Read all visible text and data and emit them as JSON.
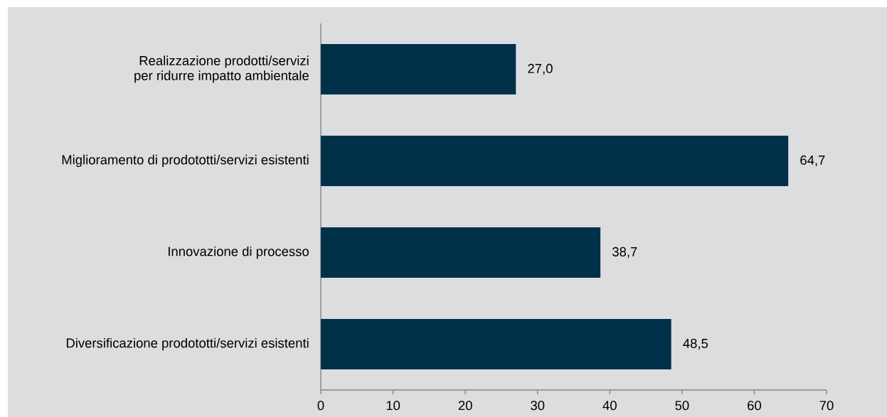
{
  "chart_data": {
    "type": "bar",
    "orientation": "horizontal",
    "categories": [
      "Realizzazione prodotti/servizi per ridurre impatto ambientale",
      "Miglioramento di prodototti/servizi esistenti",
      "Innovazione di processo",
      "Diversificazione prodototti/servizi esistenti"
    ],
    "values": [
      27.0,
      64.7,
      38.7,
      48.5
    ],
    "color": "#003149",
    "value_labels": [
      "27,0",
      "64,7",
      "38,7",
      "48,5"
    ],
    "xlim": [
      0,
      70
    ],
    "xticks": [
      0,
      10,
      20,
      30,
      40,
      50,
      60,
      70
    ]
  }
}
